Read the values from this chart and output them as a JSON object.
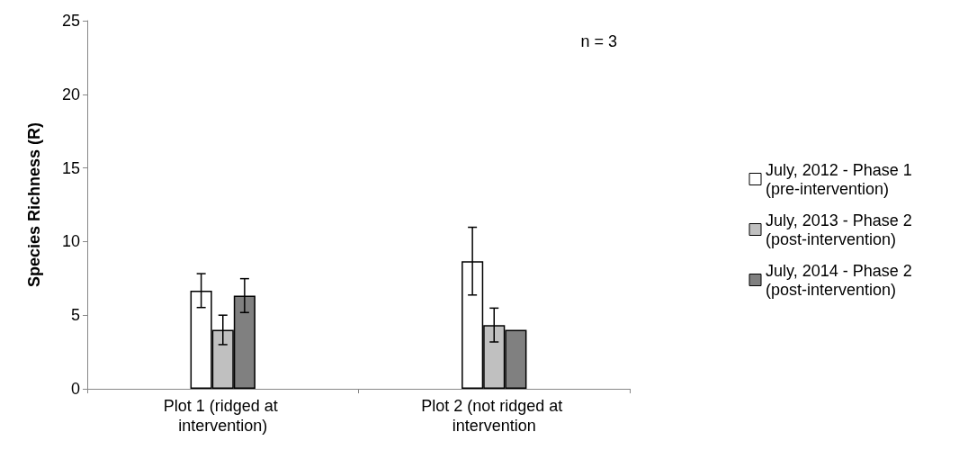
{
  "chart_data": {
    "type": "bar",
    "ylabel": "Species Richness (R)",
    "categories": [
      "Plot 1 (ridged at intervention)",
      "Plot 2 (not ridged at intervention"
    ],
    "series": [
      {
        "name": "July, 2012 - Phase 1 (pre-intervention)",
        "color": "#ffffff",
        "values": [
          6.67,
          8.67
        ],
        "errors": [
          1.15,
          2.3
        ]
      },
      {
        "name": "July, 2013 - Phase 2 (post-intervention)",
        "color": "#c0c0c0",
        "values": [
          4.0,
          4.33
        ],
        "errors": [
          1.0,
          1.15
        ]
      },
      {
        "name": "July, 2014 - Phase 2 (post-intervention)",
        "color": "#808080",
        "values": [
          6.33,
          4.0
        ],
        "errors": [
          1.15,
          0
        ]
      }
    ],
    "ylim": [
      0,
      25
    ],
    "yticks": [
      0,
      5,
      10,
      15,
      20,
      25
    ],
    "annotations": [
      "n = 3"
    ],
    "grid": false,
    "legend": "right"
  }
}
